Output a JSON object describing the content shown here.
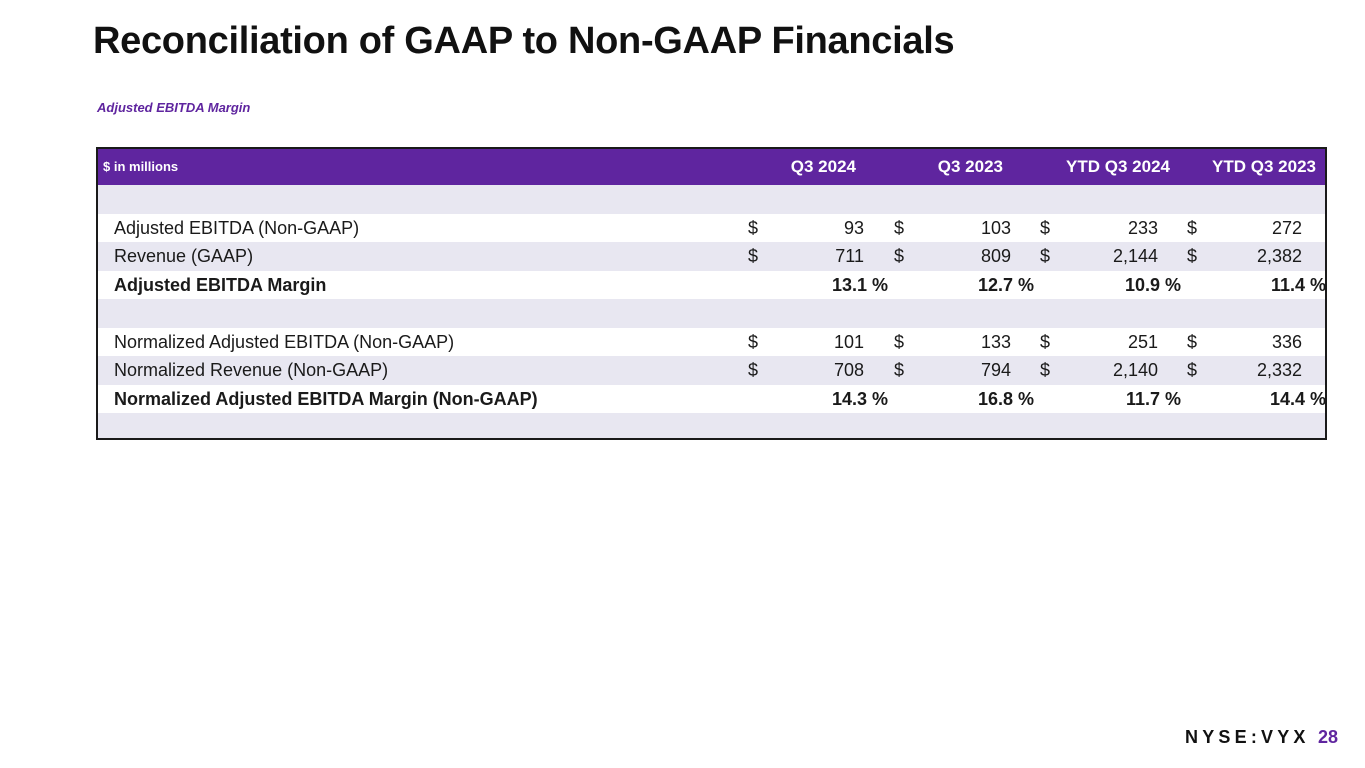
{
  "page": {
    "title": "Reconciliation of GAAP to Non-GAAP Financials",
    "subtitle": "Adjusted EBITDA Margin",
    "brand": "NYSE:VYX",
    "page_number": "28",
    "accent_color": "#5f259f"
  },
  "table": {
    "unit_label": "$ in millions",
    "columns": [
      "Q3 2024",
      "Q3 2023",
      "YTD Q3 2024",
      "YTD Q3 2023"
    ],
    "rows": [
      {
        "label": "Adjusted EBITDA (Non-GAAP)",
        "currency": "$",
        "values": [
          "93",
          "103",
          "233",
          "272"
        ]
      },
      {
        "label": "Revenue (GAAP)",
        "currency": "$",
        "values": [
          "711",
          "809",
          "2,144",
          "2,382"
        ]
      },
      {
        "label": "Adjusted EBITDA Margin",
        "values": [
          "13.1 %",
          "12.7 %",
          "10.9 %",
          "11.4 %"
        ]
      },
      {
        "label": "Normalized Adjusted EBITDA (Non-GAAP)",
        "currency": "$",
        "values": [
          "101",
          "133",
          "251",
          "336"
        ]
      },
      {
        "label": "Normalized Revenue (Non-GAAP)",
        "currency": "$",
        "values": [
          "708",
          "794",
          "2,140",
          "2,332"
        ]
      },
      {
        "label": "Normalized Adjusted EBITDA Margin (Non-GAAP)",
        "values": [
          "14.3 %",
          "16.8 %",
          "11.7 %",
          "14.4 %"
        ]
      }
    ]
  }
}
